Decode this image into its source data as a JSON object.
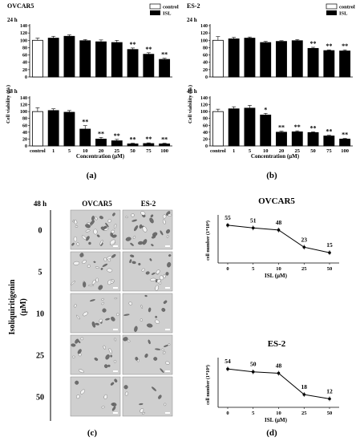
{
  "panels": {
    "a": {
      "label": "(a)",
      "cell_line": "OVCAR5",
      "legend": [
        "control",
        "ISL"
      ],
      "xlabel": "Concentration (μM)",
      "ylabel": "Cell viability (%)"
    },
    "b": {
      "label": "(b)",
      "cell_line": "ES-2",
      "legend": [
        "control",
        "ISL"
      ],
      "xlabel": "Concentration (μM)",
      "ylabel": "Cell viability (%)"
    },
    "c": {
      "label": "(c)",
      "time": "48 h",
      "col_headers": [
        "OVCAR5",
        "ES-2"
      ],
      "row_title_1": "Isoliquiritigenin",
      "row_title_2": "(μM)",
      "rows": [
        "0",
        "5",
        "10",
        "25",
        "50"
      ]
    },
    "d": {
      "label": "(d)",
      "xlabel": "ISL (μM)",
      "ylabel": "cell number (1*10⁴)"
    }
  },
  "chart_data": [
    {
      "type": "bar",
      "title": "OVCAR5",
      "subtitle": "24 h",
      "categories": [
        "control",
        "1",
        "5",
        "10",
        "20",
        "25",
        "50",
        "75",
        "100"
      ],
      "values": [
        100,
        106,
        111,
        99,
        96,
        94,
        75,
        62,
        48
      ],
      "errors": [
        6,
        5,
        4,
        3,
        5,
        6,
        4,
        4,
        3
      ],
      "significance": [
        "",
        "",
        "",
        "",
        "",
        "",
        "**",
        "**",
        "**"
      ],
      "ylim": [
        0,
        140
      ],
      "yticks": [
        0,
        20,
        40,
        60,
        80,
        100,
        120,
        140
      ]
    },
    {
      "type": "bar",
      "subtitle": "48 h",
      "categories": [
        "control",
        "1",
        "5",
        "10",
        "20",
        "25",
        "50",
        "75",
        "100"
      ],
      "values": [
        100,
        103,
        98,
        49,
        20,
        15,
        6,
        7,
        6
      ],
      "errors": [
        11,
        5,
        5,
        10,
        5,
        4,
        2,
        2,
        2
      ],
      "significance": [
        "",
        "",
        "",
        "**",
        "**",
        "**",
        "**",
        "**",
        "**"
      ],
      "ylim": [
        0,
        140
      ],
      "yticks": [
        0,
        20,
        40,
        60,
        80,
        100,
        120,
        140
      ]
    },
    {
      "type": "bar",
      "title": "ES-2",
      "subtitle": "24 h",
      "categories": [
        "control",
        "1",
        "5",
        "10",
        "20",
        "25",
        "50",
        "75",
        "100"
      ],
      "values": [
        100,
        104,
        106,
        94,
        97,
        99,
        78,
        72,
        71
      ],
      "errors": [
        10,
        4,
        3,
        3,
        2,
        3,
        3,
        2,
        3
      ],
      "significance": [
        "",
        "",
        "",
        "",
        "",
        "",
        "**",
        "**",
        "**"
      ],
      "ylim": [
        0,
        140
      ],
      "yticks": [
        0,
        20,
        40,
        60,
        80,
        100,
        120,
        140
      ]
    },
    {
      "type": "bar",
      "subtitle": "48 h",
      "categories": [
        "control",
        "1",
        "5",
        "10",
        "20",
        "25",
        "50",
        "75",
        "100"
      ],
      "values": [
        100,
        108,
        110,
        90,
        40,
        41,
        39,
        29,
        20
      ],
      "errors": [
        7,
        6,
        8,
        5,
        3,
        3,
        2,
        2,
        2
      ],
      "significance": [
        "",
        "",
        "",
        "*",
        "**",
        "**",
        "**",
        "**",
        "**"
      ],
      "ylim": [
        0,
        140
      ],
      "yticks": [
        0,
        20,
        40,
        60,
        80,
        100,
        120,
        140
      ]
    },
    {
      "type": "line",
      "title": "OVCAR5",
      "categories": [
        "0",
        "5",
        "10",
        "25",
        "50"
      ],
      "values": [
        55,
        51,
        48,
        23,
        15
      ],
      "ylim": [
        0,
        70
      ]
    },
    {
      "type": "line",
      "title": "ES-2",
      "categories": [
        "0",
        "5",
        "10",
        "25",
        "50"
      ],
      "values": [
        54,
        50,
        48,
        18,
        12
      ],
      "ylim": [
        0,
        70
      ]
    }
  ]
}
